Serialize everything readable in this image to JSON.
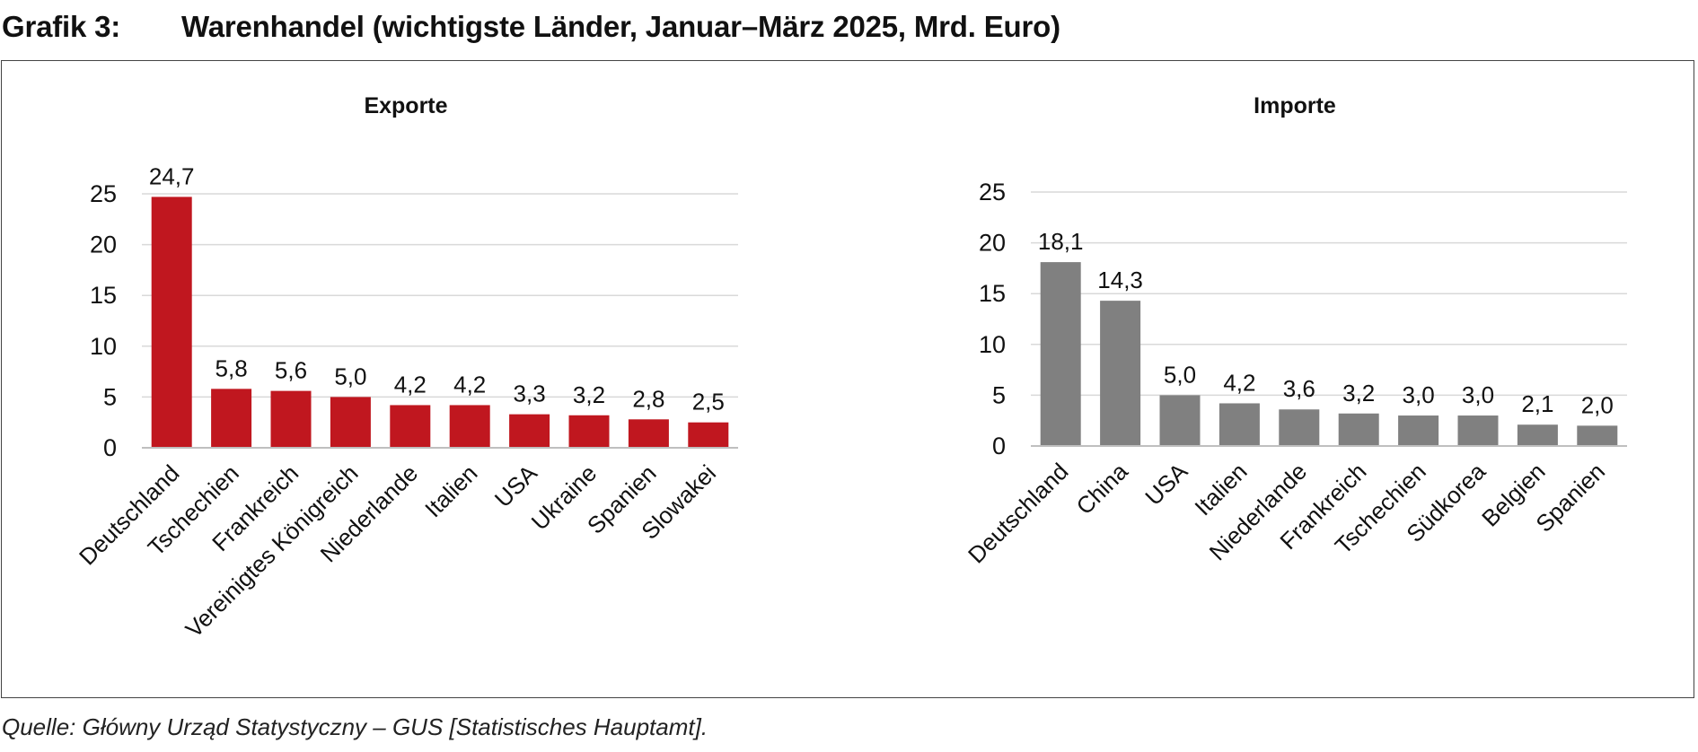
{
  "header": {
    "figure_label": "Grafik 3:",
    "title": "Warenhandel (wichtigste Länder, Januar–März 2025, Mrd. Euro)"
  },
  "source": "Quelle: Główny Urząd Statystyczny – GUS [Statistisches Hauptamt].",
  "colors": {
    "exports": "#c0171f",
    "imports": "#808080",
    "grid": "#d9d9d9",
    "axis": "#bfbfbf"
  },
  "chart_data": [
    {
      "type": "bar",
      "title": "Exporte",
      "categories": [
        "Deutschland",
        "Tschechien",
        "Frankreich",
        "Vereinigtes Königreich",
        "Niederlande",
        "Italien",
        "USA",
        "Ukraine",
        "Spanien",
        "Slowakei"
      ],
      "values": [
        24.7,
        5.8,
        5.6,
        5.0,
        4.2,
        4.2,
        3.3,
        3.2,
        2.8,
        2.5
      ],
      "value_labels": [
        "24,7",
        "5,8",
        "5,6",
        "5,0",
        "4,2",
        "4,2",
        "3,3",
        "3,2",
        "2,8",
        "2,5"
      ],
      "ylim": [
        0,
        25
      ],
      "yticks": [
        0,
        5,
        10,
        15,
        20,
        25
      ],
      "xlabel": "",
      "ylabel": "",
      "grid": true
    },
    {
      "type": "bar",
      "title": "Importe",
      "categories": [
        "Deutschland",
        "China",
        "USA",
        "Italien",
        "Niederlande",
        "Frankreich",
        "Tschechien",
        "Südkorea",
        "Belgien",
        "Spanien"
      ],
      "values": [
        18.1,
        14.3,
        5.0,
        4.2,
        3.6,
        3.2,
        3.0,
        3.0,
        2.1,
        2.0
      ],
      "value_labels": [
        "18,1",
        "14,3",
        "5,0",
        "4,2",
        "3,6",
        "3,2",
        "3,0",
        "3,0",
        "2,1",
        "2,0"
      ],
      "ylim": [
        0,
        25
      ],
      "yticks": [
        0,
        5,
        10,
        15,
        20,
        25
      ],
      "xlabel": "",
      "ylabel": "",
      "grid": true
    }
  ]
}
